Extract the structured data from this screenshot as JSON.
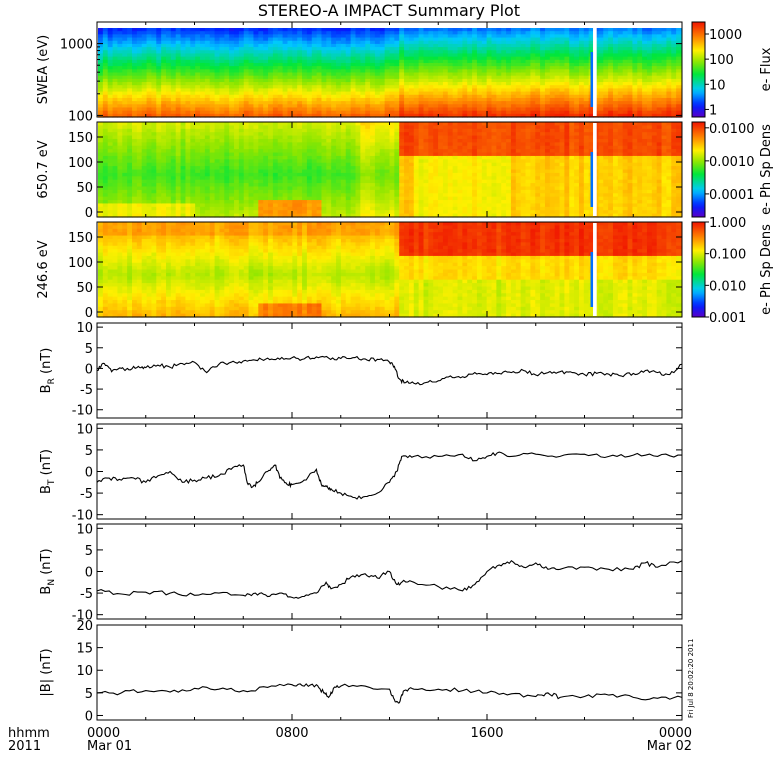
{
  "title": "STEREO-A IMPACT Summary Plot",
  "time_axis": {
    "row_label": "hhmm",
    "year_label": "2011",
    "ticks": [
      {
        "hour": 0,
        "label": "0000",
        "date": "Mar 01"
      },
      {
        "hour": 8,
        "label": "0800",
        "date": ""
      },
      {
        "hour": 16,
        "label": "1600",
        "date": ""
      },
      {
        "hour": 24,
        "label": "0000",
        "date": "Mar 02"
      }
    ],
    "range_hours": [
      0,
      24
    ]
  },
  "timestamp_note": "Fri Jul  8 20:02:20 2011",
  "colors": {
    "line": "#000000",
    "frame": "#000000",
    "gap": "#ffffff"
  },
  "chart_data": [
    {
      "type": "heatmap",
      "id": "swea",
      "ylabel": "SWEA (eV)",
      "yscale": "log",
      "ylim": [
        95,
        2000
      ],
      "yticks": [
        {
          "v": 100,
          "label": "100"
        },
        {
          "v": 1000,
          "label": "1000"
        }
      ],
      "colorbar": {
        "label": "e- Flux",
        "scale": "log",
        "range": [
          0.5,
          3000
        ],
        "ticks": [
          {
            "v": 1,
            "label": "1"
          },
          {
            "v": 10,
            "label": "10"
          },
          {
            "v": 100,
            "label": "100"
          },
          {
            "v": 1000,
            "label": "1000"
          }
        ]
      },
      "time_bins_hours": [
        0,
        6.5,
        12.3,
        12.8,
        20.5,
        24
      ],
      "description_levels": [
        {
          "t0": 0,
          "t1": 12.3,
          "low_energy_level": 0.75
        },
        {
          "t0": 12.3,
          "t1": 24,
          "low_energy_level": 0.85
        }
      ],
      "data_gap_hours": [
        [
          20.35,
          20.5
        ]
      ]
    },
    {
      "type": "heatmap",
      "id": "pad_650",
      "ylabel": "650.7 eV",
      "ylim": [
        -10,
        180
      ],
      "yticks": [
        {
          "v": 0,
          "label": "0"
        },
        {
          "v": 50,
          "label": "50"
        },
        {
          "v": 100,
          "label": "100"
        },
        {
          "v": 150,
          "label": "150"
        }
      ],
      "colorbar": {
        "label": "e- Ph Sp Dens",
        "scale": "log",
        "range": [
          2e-05,
          0.015
        ],
        "ticks": [
          {
            "v": 0.0001,
            "label": "0.0001"
          },
          {
            "v": 0.001,
            "label": "0.0010"
          },
          {
            "v": 0.01,
            "label": "0.0100"
          }
        ]
      },
      "data_gap_hours": [
        [
          20.35,
          20.5
        ]
      ]
    },
    {
      "type": "heatmap",
      "id": "pad_246",
      "ylabel": "246.6 eV",
      "ylim": [
        -10,
        180
      ],
      "yticks": [
        {
          "v": 0,
          "label": "0"
        },
        {
          "v": 50,
          "label": "50"
        },
        {
          "v": 100,
          "label": "100"
        },
        {
          "v": 150,
          "label": "150"
        }
      ],
      "colorbar": {
        "label": "e- Ph Sp Dens",
        "scale": "log",
        "range": [
          0.001,
          1.0
        ],
        "ticks": [
          {
            "v": 0.001,
            "label": "0.001"
          },
          {
            "v": 0.01,
            "label": "0.010"
          },
          {
            "v": 0.1,
            "label": "0.100"
          },
          {
            "v": 1.0,
            "label": "1.000"
          }
        ]
      },
      "data_gap_hours": [
        [
          20.35,
          20.5
        ]
      ]
    },
    {
      "type": "line",
      "id": "br",
      "ylabel_main": "B",
      "ylabel_sub": "R",
      "ylabel_unit": " (nT)",
      "ylim": [
        -12,
        11
      ],
      "yticks": [
        {
          "v": -10,
          "label": "-10"
        },
        {
          "v": -5,
          "label": "-5"
        },
        {
          "v": 0,
          "label": "0"
        },
        {
          "v": 5,
          "label": "5"
        },
        {
          "v": 10,
          "label": "10"
        }
      ],
      "x": [
        0,
        0.3,
        0.6,
        1.0,
        1.3,
        1.7,
        2.0,
        2.5,
        3.0,
        3.5,
        4.0,
        4.5,
        5.0,
        5.5,
        6.0,
        6.5,
        7.0,
        7.5,
        8.0,
        8.5,
        9.0,
        9.5,
        10.0,
        10.5,
        11.0,
        11.5,
        12.0,
        12.2,
        12.4,
        12.6,
        13.0,
        13.5,
        14.0,
        14.5,
        15.0,
        15.5,
        16.0,
        16.5,
        17.0,
        17.5,
        18.0,
        18.5,
        19.0,
        19.5,
        20.0,
        20.5,
        21.0,
        21.5,
        22.0,
        22.5,
        23.0,
        23.5,
        24.0
      ],
      "y": [
        -0.5,
        1.2,
        -0.8,
        0.0,
        -0.3,
        0.5,
        0.2,
        0.8,
        0.3,
        1.2,
        1.5,
        -1.0,
        1.0,
        1.5,
        1.8,
        2.0,
        2.5,
        2.2,
        2.6,
        2.3,
        2.8,
        2.5,
        2.4,
        2.6,
        2.3,
        2.2,
        1.5,
        0.5,
        -2.5,
        -3.5,
        -3.6,
        -3.4,
        -3.0,
        -1.8,
        -2.0,
        -1.0,
        -1.5,
        -1.2,
        -1.0,
        -0.5,
        -1.6,
        -1.0,
        -0.8,
        -1.0,
        -1.5,
        -1.2,
        -1.4,
        -1.8,
        -1.2,
        -0.5,
        -1.0,
        -1.5,
        1.0
      ]
    },
    {
      "type": "line",
      "id": "bt",
      "ylabel_main": "B",
      "ylabel_sub": "T",
      "ylabel_unit": " (nT)",
      "ylim": [
        -11,
        11
      ],
      "yticks": [
        {
          "v": -10,
          "label": "-10"
        },
        {
          "v": -5,
          "label": "-5"
        },
        {
          "v": 0,
          "label": "0"
        },
        {
          "v": 5,
          "label": "5"
        },
        {
          "v": 10,
          "label": "10"
        }
      ],
      "x": [
        0,
        0.5,
        1.0,
        1.5,
        2.0,
        2.5,
        3.0,
        3.5,
        4.0,
        4.5,
        5.0,
        5.5,
        6.0,
        6.2,
        6.4,
        6.6,
        7.0,
        7.3,
        7.5,
        7.8,
        8.0,
        8.5,
        9.0,
        9.2,
        9.4,
        9.6,
        10.0,
        10.5,
        11.0,
        11.5,
        12.0,
        12.3,
        12.5,
        13.0,
        14.0,
        15.0,
        15.5,
        16.0,
        16.5,
        17.0,
        18.0,
        19.0,
        20.0,
        21.0,
        22.0,
        23.0,
        24.0
      ],
      "y": [
        -2.5,
        -1.5,
        -2.0,
        -1.5,
        -2.5,
        -1.0,
        0.0,
        -2.5,
        -2.0,
        -1.5,
        -1.0,
        0.5,
        1.5,
        -3.0,
        -3.5,
        -2.5,
        0.0,
        1.5,
        -1.5,
        -3.0,
        -3.0,
        -2.0,
        0.5,
        -3.0,
        -3.5,
        -4.0,
        -5.0,
        -6.0,
        -5.8,
        -5.0,
        -2.5,
        0.0,
        3.5,
        3.5,
        3.5,
        4.0,
        2.5,
        3.5,
        4.5,
        3.5,
        4.0,
        3.5,
        4.0,
        3.5,
        3.8,
        3.5,
        3.8
      ]
    },
    {
      "type": "line",
      "id": "bn",
      "ylabel_main": "B",
      "ylabel_sub": "N",
      "ylabel_unit": " (nT)",
      "ylim": [
        -11,
        11
      ],
      "yticks": [
        {
          "v": -10,
          "label": "-10"
        },
        {
          "v": -5,
          "label": "-5"
        },
        {
          "v": 0,
          "label": "0"
        },
        {
          "v": 5,
          "label": "5"
        },
        {
          "v": 10,
          "label": "10"
        }
      ],
      "x": [
        0,
        1.0,
        2.0,
        3.0,
        4.0,
        5.0,
        6.0,
        6.5,
        7.0,
        7.5,
        8.0,
        8.5,
        9.0,
        9.4,
        9.6,
        10.0,
        10.5,
        11.0,
        11.5,
        12.0,
        12.3,
        12.5,
        13.0,
        14.0,
        15.0,
        15.5,
        16.0,
        16.5,
        17.0,
        17.5,
        18.0,
        18.5,
        19.0,
        20.0,
        21.0,
        22.0,
        22.5,
        23.0,
        24.0
      ],
      "y": [
        -4.5,
        -5.2,
        -4.8,
        -5.0,
        -5.5,
        -5.0,
        -5.5,
        -5.0,
        -5.8,
        -5.0,
        -6.0,
        -5.8,
        -5.0,
        -2.5,
        -4.0,
        -3.0,
        -1.0,
        -0.5,
        -1.5,
        0.0,
        -3.0,
        -2.5,
        -2.5,
        -3.5,
        -4.5,
        -3.0,
        0.0,
        1.5,
        2.5,
        1.0,
        2.0,
        0.5,
        0.5,
        1.0,
        0.5,
        0.5,
        2.0,
        1.0,
        2.5
      ]
    },
    {
      "type": "line",
      "id": "bmag",
      "ylabel_main": "|B|",
      "ylabel_sub": "",
      "ylabel_unit": " (nT)",
      "ylim": [
        -1,
        20
      ],
      "yticks": [
        {
          "v": 0,
          "label": "0"
        },
        {
          "v": 5,
          "label": "5"
        },
        {
          "v": 10,
          "label": "10"
        },
        {
          "v": 15,
          "label": "15"
        },
        {
          "v": 20,
          "label": "20"
        }
      ],
      "x": [
        0,
        1.0,
        2.0,
        3.0,
        4.0,
        5.0,
        6.0,
        7.0,
        8.0,
        8.5,
        9.0,
        9.3,
        9.5,
        9.7,
        10.0,
        11.0,
        12.0,
        12.2,
        12.4,
        12.6,
        13.0,
        14.0,
        15.0,
        16.0,
        17.0,
        18.0,
        18.5,
        19.0,
        20.0,
        21.0,
        22.0,
        23.0,
        24.0
      ],
      "y": [
        5.0,
        5.0,
        5.5,
        5.2,
        6.0,
        5.8,
        5.5,
        6.2,
        6.8,
        6.5,
        6.8,
        5.0,
        4.0,
        6.0,
        6.5,
        6.5,
        5.8,
        3.5,
        2.8,
        5.5,
        5.8,
        5.8,
        5.5,
        5.0,
        4.8,
        4.2,
        5.0,
        4.0,
        4.2,
        4.5,
        4.0,
        3.8,
        4.0
      ]
    }
  ]
}
